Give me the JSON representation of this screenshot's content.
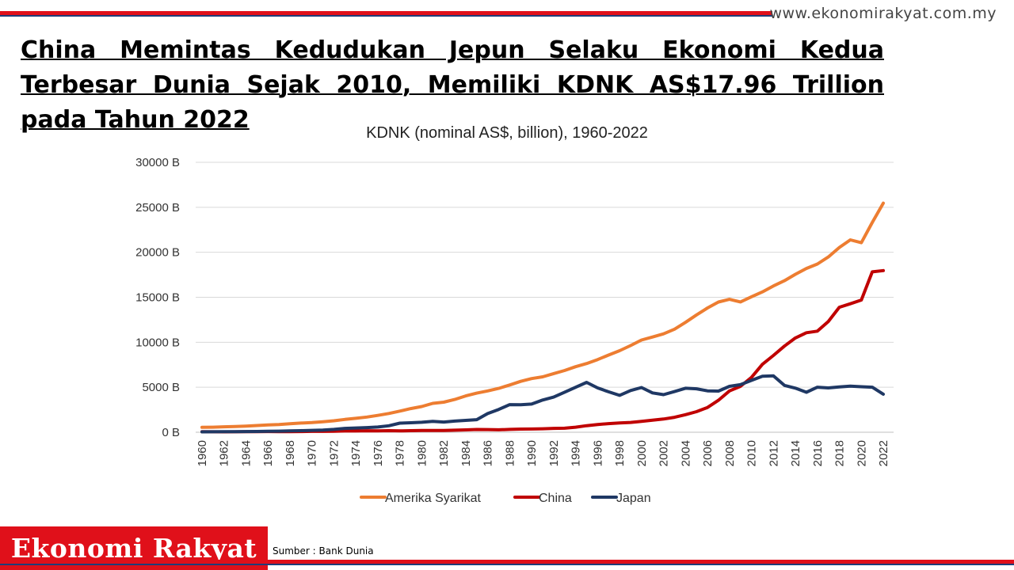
{
  "header": {
    "website": "www.ekonomirakyat.com.my",
    "headline": "China Memintas Kedudukan Jepun Selaku Ekonomi Kedua Terbesar Dunia Sejak 2010, Memiliki KDNK AS$17.96 Trillion pada Tahun 2022"
  },
  "footer": {
    "brand": "Ekonomi Rakyat",
    "source": "Sumber : Bank Dunia"
  },
  "colors": {
    "brand_red": "#e0101a",
    "navy": "#1f3d7a"
  },
  "chart_data": {
    "type": "line",
    "title": "KDNK (nominal AS$, billion), 1960-2022",
    "xlabel": "",
    "ylabel": "",
    "ylim": [
      0,
      30000
    ],
    "yticks": [
      "0 B",
      "5000 B",
      "10000 B",
      "15000 B",
      "20000 B",
      "25000 B",
      "30000 B"
    ],
    "ytick_values": [
      0,
      5000,
      10000,
      15000,
      20000,
      25000,
      30000
    ],
    "xtick_labels": [
      "1960",
      "1962",
      "1964",
      "1966",
      "1968",
      "1970",
      "1972",
      "1974",
      "1976",
      "1978",
      "1980",
      "1982",
      "1984",
      "1986",
      "1988",
      "1990",
      "1992",
      "1994",
      "1996",
      "1998",
      "2000",
      "2002",
      "2004",
      "2006",
      "2008",
      "2010",
      "2012",
      "2014",
      "2016",
      "2018",
      "2020",
      "2022"
    ],
    "grid": true,
    "legend_position": "bottom",
    "x": [
      1960,
      1961,
      1962,
      1963,
      1964,
      1965,
      1966,
      1967,
      1968,
      1969,
      1970,
      1971,
      1972,
      1973,
      1974,
      1975,
      1976,
      1977,
      1978,
      1979,
      1980,
      1981,
      1982,
      1983,
      1984,
      1985,
      1986,
      1987,
      1988,
      1989,
      1990,
      1991,
      1992,
      1993,
      1994,
      1995,
      1996,
      1997,
      1998,
      1999,
      2000,
      2001,
      2002,
      2003,
      2004,
      2005,
      2006,
      2007,
      2008,
      2009,
      2010,
      2011,
      2012,
      2013,
      2014,
      2015,
      2016,
      2017,
      2018,
      2019,
      2020,
      2021,
      2022
    ],
    "series": [
      {
        "name": "Amerika Syarikat",
        "color": "#ed7d31",
        "values": [
          543,
          563,
          605,
          638,
          686,
          744,
          815,
          862,
          943,
          1020,
          1073,
          1165,
          1280,
          1425,
          1545,
          1685,
          1873,
          2082,
          2352,
          2627,
          2857,
          3207,
          3345,
          3638,
          4040,
          4346,
          4590,
          4870,
          5253,
          5658,
          5963,
          6158,
          6520,
          6858,
          7287,
          7640,
          8073,
          8578,
          9063,
          9631,
          10251,
          10582,
          10936,
          11458,
          12214,
          13037,
          13815,
          14475,
          14770,
          14478,
          15049,
          15600,
          16254,
          16843,
          17551,
          18206,
          18695,
          19477,
          20533,
          21381,
          21060,
          23315,
          25464
        ]
      },
      {
        "name": "China",
        "color": "#c00000",
        "values": [
          60,
          50,
          47,
          51,
          60,
          70,
          76,
          73,
          71,
          80,
          93,
          100,
          114,
          139,
          144,
          164,
          154,
          175,
          150,
          178,
          191,
          196,
          205,
          231,
          260,
          309,
          301,
          273,
          313,
          348,
          361,
          383,
          427,
          445,
          564,
          734,
          863,
          962,
          1029,
          1094,
          1211,
          1339,
          1471,
          1660,
          1955,
          2286,
          2752,
          3550,
          4594,
          5102,
          6087,
          7552,
          8532,
          9570,
          10476,
          11062,
          11233,
          12310,
          13895,
          14280,
          14688,
          17820,
          17963
        ]
      },
      {
        "name": "Japan",
        "color": "#1f3864",
        "values": [
          44,
          54,
          60,
          69,
          82,
          91,
          106,
          124,
          147,
          172,
          212,
          240,
          318,
          432,
          479,
          521,
          577,
          721,
          1013,
          1055,
          1105,
          1218,
          1134,
          1243,
          1319,
          1399,
          2079,
          2532,
          3072,
          3054,
          3132,
          3585,
          3909,
          4455,
          4999,
          5546,
          4924,
          4493,
          4098,
          4636,
          4968,
          4375,
          4182,
          4519,
          4893,
          4831,
          4601,
          4579,
          5106,
          5289,
          5759,
          6233,
          6272,
          5212,
          4897,
          4445,
          5004,
          4931,
          5041,
          5118,
          5055,
          5006,
          4232
        ]
      }
    ]
  }
}
